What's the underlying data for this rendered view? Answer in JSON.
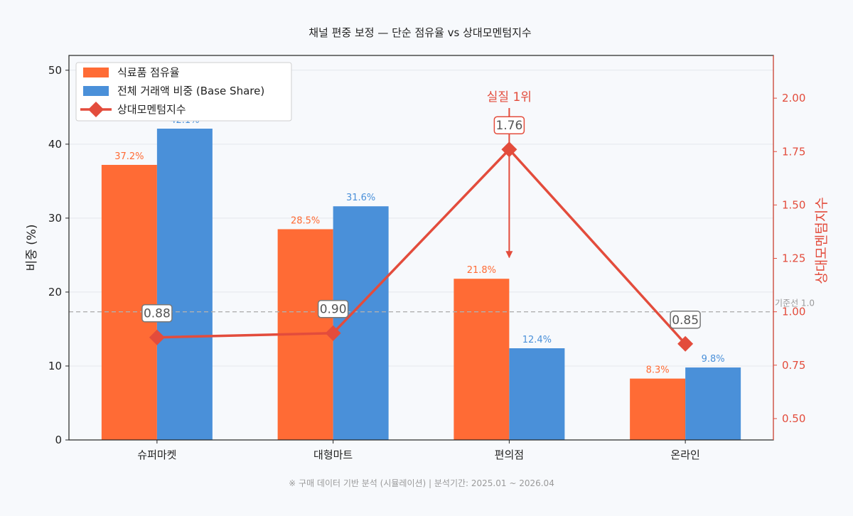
{
  "chart_data": {
    "type": "bar",
    "title": "채널 편중 보정 — 단순 점유율 vs 상대모멘텀지수",
    "categories": [
      "슈퍼마켓",
      "대형마트",
      "편의점",
      "온라인"
    ],
    "series": [
      {
        "name": "식료품 점유율",
        "values": [
          37.2,
          28.5,
          21.8,
          8.3
        ],
        "value_labels": [
          "37.2%",
          "28.5%",
          "21.8%",
          "8.3%"
        ],
        "color": "#ff6b35",
        "axis": "left",
        "kind": "bar"
      },
      {
        "name": "전체 거래액 비중 (Base Share)",
        "values": [
          42.1,
          31.6,
          12.4,
          9.8
        ],
        "value_labels": [
          "42.1%",
          "31.6%",
          "12.4%",
          "9.8%"
        ],
        "color": "#4a90d9",
        "axis": "left",
        "kind": "bar"
      },
      {
        "name": "상대모멘텀지수",
        "values": [
          0.88,
          0.9,
          1.76,
          0.85
        ],
        "value_labels": [
          "0.88",
          "0.90",
          "1.76",
          "0.85"
        ],
        "color": "#e34c3c",
        "axis": "right",
        "kind": "line",
        "marker": "diamond"
      }
    ],
    "ylabel": "비중 (%)",
    "ylim": [
      0,
      52
    ],
    "yticks": [
      "0",
      "10",
      "20",
      "30",
      "40",
      "50"
    ],
    "y2label": "상대모멘텀지수",
    "y2lim": [
      0.4,
      2.2
    ],
    "y2ticks": [
      "0.50",
      "0.75",
      "1.00",
      "1.25",
      "1.50",
      "1.75",
      "2.00"
    ],
    "reference_line": {
      "value": 1.0,
      "axis": "right",
      "label": "기준선 1.0",
      "style": "dashed",
      "color": "#b0b0b0"
    },
    "annotation": {
      "text": "실질 1위",
      "category": "편의점",
      "color": "#e34c3c"
    },
    "legend_position": "upper-left",
    "grid": "horizontal",
    "footnote": "※ 구매 데이터 기반 분석 (시뮬레이션) | 분석기간: 2025.01 ~ 2026.04"
  }
}
